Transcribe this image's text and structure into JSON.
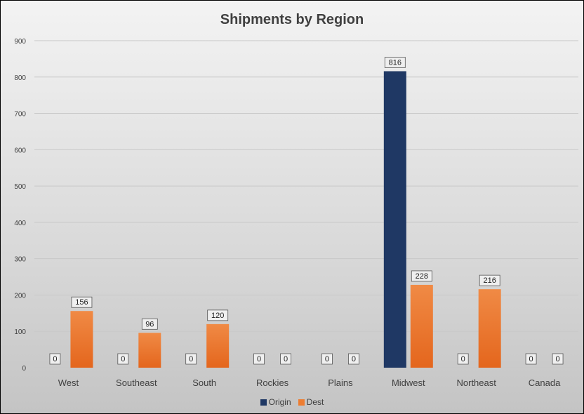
{
  "chart_data": {
    "type": "bar",
    "title": "Shipments by Region",
    "xlabel": "",
    "ylabel": "",
    "categories": [
      "West",
      "Southeast",
      "South",
      "Rockies",
      "Plains",
      "Midwest",
      "Northeast",
      "Canada"
    ],
    "series": [
      {
        "name": "Origin",
        "color": "#1f3864",
        "values": [
          0,
          0,
          0,
          0,
          0,
          816,
          0,
          0
        ]
      },
      {
        "name": "Dest",
        "color": "#ed7d31",
        "values": [
          156,
          96,
          120,
          0,
          0,
          228,
          216,
          0
        ]
      }
    ],
    "ylim": [
      0,
      900
    ],
    "yticks": [
      "0",
      "100",
      "200",
      "300",
      "400",
      "500",
      "600",
      "700",
      "800",
      "900"
    ],
    "grid": true,
    "legend_position": "bottom",
    "data_labels": true
  }
}
